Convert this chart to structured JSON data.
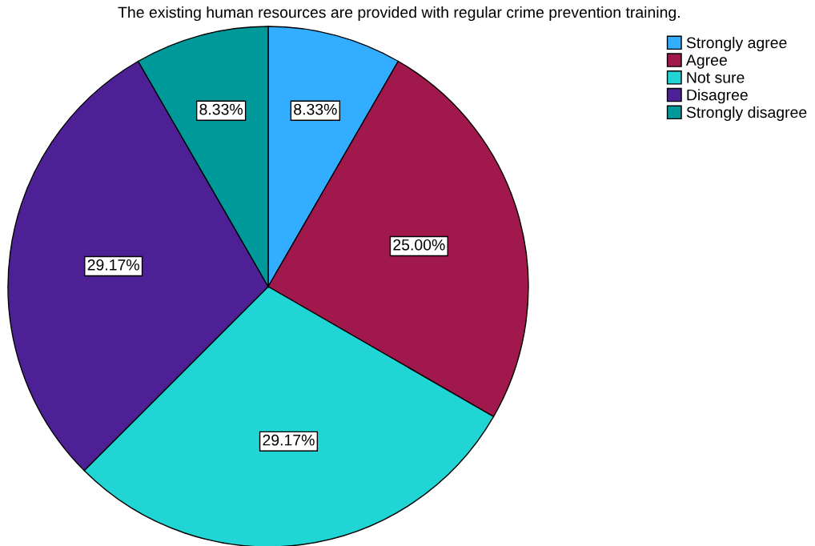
{
  "chart_data": {
    "type": "pie",
    "title": "The existing human resources are provided with regular crime prevention training.",
    "categories": [
      "Strongly agree",
      "Agree",
      "Not sure",
      "Disagree",
      "Strongly disagree"
    ],
    "values": [
      8.33,
      25.0,
      29.17,
      29.17,
      8.33
    ],
    "colors": [
      "#33adff",
      "#a0184c",
      "#21d5d5",
      "#4e2096",
      "#009999"
    ],
    "value_labels": [
      "8.33%",
      "25.00%",
      "29.17%",
      "29.17%",
      "8.33%"
    ],
    "legend": "top right"
  }
}
